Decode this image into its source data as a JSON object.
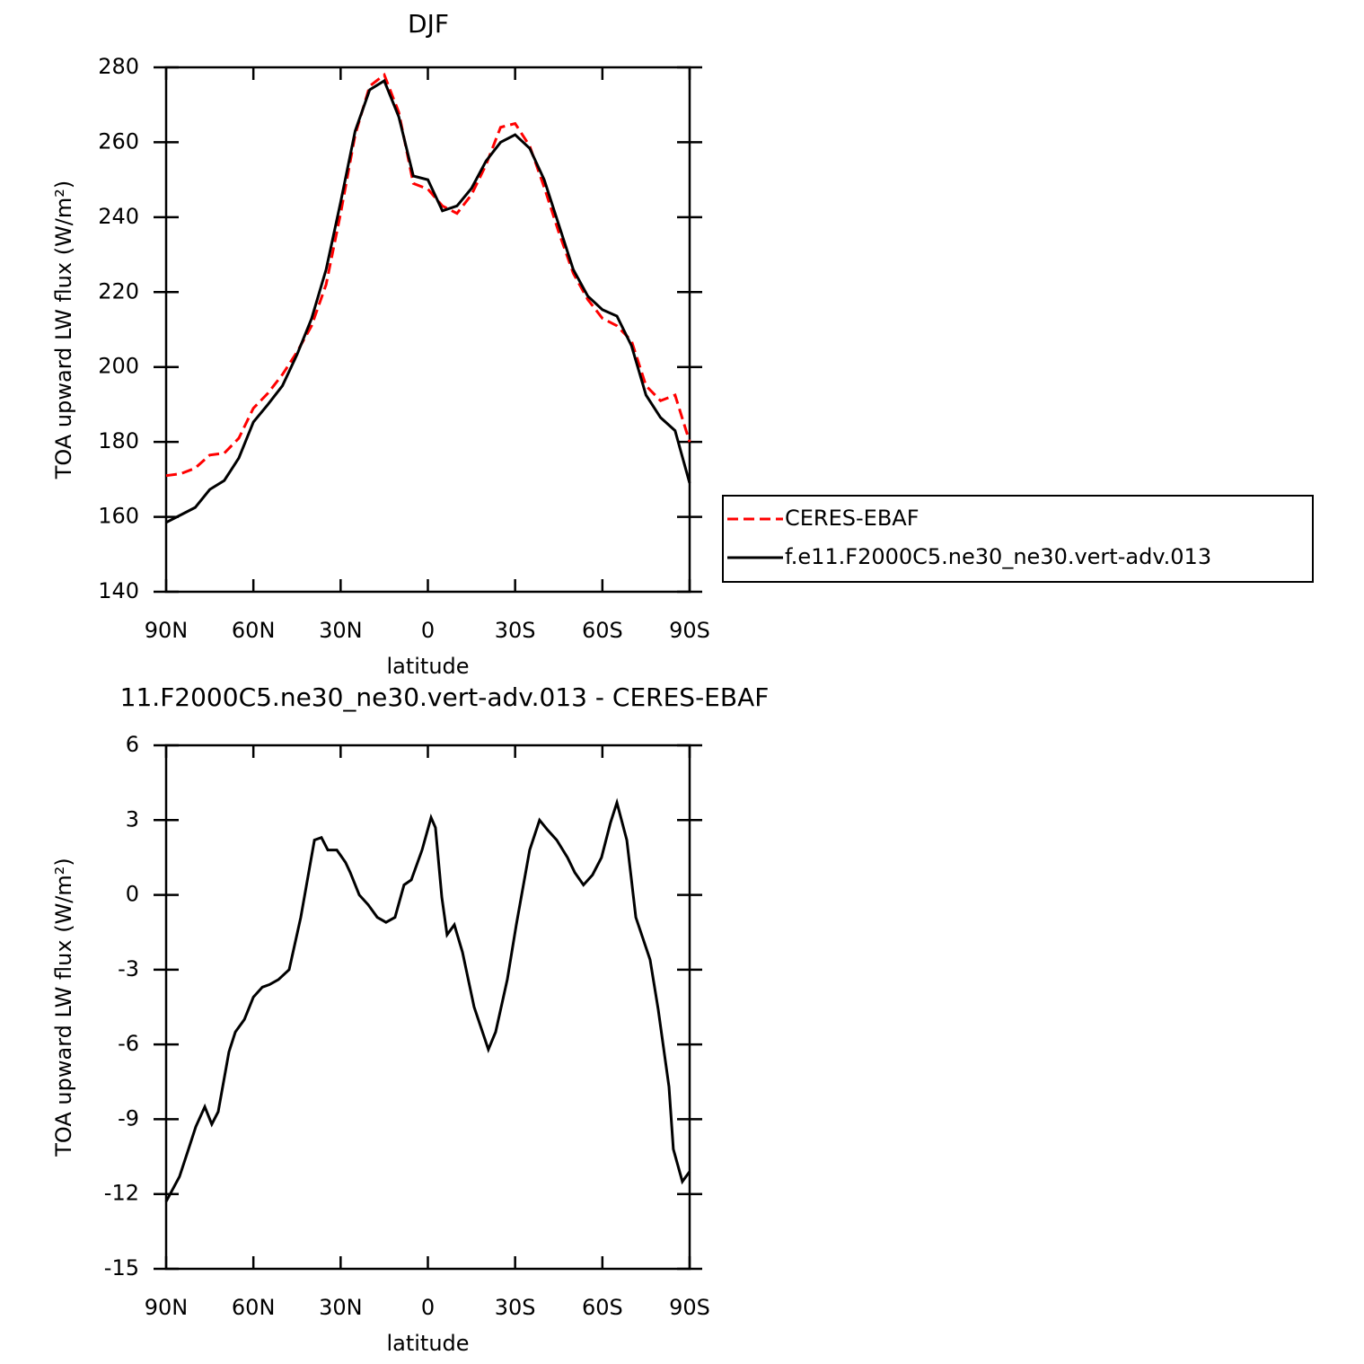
{
  "chart_data": [
    {
      "type": "line",
      "title": "DJF",
      "x_label": "latitude",
      "y_label": "TOA upward LW flux (W/m²)",
      "xlim": [
        90,
        -90
      ],
      "xticks": [
        {
          "value": 90,
          "label": "90N"
        },
        {
          "value": 60,
          "label": "60N"
        },
        {
          "value": 30,
          "label": "30N"
        },
        0,
        {
          "value": -30,
          "label": "30S"
        },
        {
          "value": -60,
          "label": "60S"
        },
        {
          "value": -90,
          "label": "90S"
        }
      ],
      "ylim": [
        140,
        280
      ],
      "yticks": [
        140,
        160,
        180,
        200,
        220,
        240,
        260,
        280
      ],
      "legend": "right",
      "x": [
        90,
        85,
        80,
        75,
        70,
        65,
        60,
        55,
        50,
        45,
        40,
        35,
        30,
        25,
        20,
        15,
        10,
        5,
        0,
        -5,
        -10,
        -15,
        -20,
        -25,
        -30,
        -35,
        -40,
        -45,
        -50,
        -55,
        -60,
        -65,
        -70,
        -75,
        -80,
        -85,
        -90
      ],
      "series": [
        {
          "name": "CERES-EBAF",
          "color": "#ff0000",
          "linestyle": "dashed",
          "values": [
            171,
            171.5,
            173,
            176.5,
            177,
            181,
            189,
            193,
            198,
            204,
            211,
            222,
            241,
            262,
            275,
            278,
            268,
            249,
            247.5,
            243,
            241,
            246,
            254,
            264,
            265,
            259,
            248,
            236,
            225,
            218,
            213,
            211,
            207,
            195,
            191,
            192.5,
            180
          ]
        },
        {
          "name": "f.e11.F2000C5.ne30_ne30.vert-adv.013",
          "color": "#000000",
          "linestyle": "solid",
          "values": [
            158.5,
            160.5,
            162.5,
            167.3,
            169.7,
            175.7,
            185.3,
            190,
            195,
            203.3,
            212.9,
            226,
            244,
            263,
            274,
            276.4,
            266.8,
            251,
            250,
            241.7,
            243,
            247.7,
            255,
            260,
            262,
            258.4,
            250,
            238,
            226,
            218.9,
            215.3,
            213.6,
            205.7,
            192.5,
            186.5,
            183,
            169
          ]
        }
      ]
    },
    {
      "type": "line",
      "title": "11.F2000C5.ne30_ne30.vert-adv.013 - CERES-EBAF",
      "x_label": "latitude",
      "y_label": "TOA upward LW flux (W/m²)",
      "xlim": [
        90,
        -90
      ],
      "xticks": [
        {
          "value": 90,
          "label": "90N"
        },
        {
          "value": 60,
          "label": "60N"
        },
        {
          "value": 30,
          "label": "30N"
        },
        0,
        {
          "value": -30,
          "label": "30S"
        },
        {
          "value": -60,
          "label": "60S"
        },
        {
          "value": -90,
          "label": "90S"
        }
      ],
      "ylim": [
        -15,
        6
      ],
      "yticks": [
        -15,
        -12,
        -9,
        -6,
        -3,
        0,
        3,
        6
      ],
      "color": "#000000",
      "x": [
        90,
        85.4,
        82.3,
        79.8,
        76.7,
        74.3,
        72.1,
        68.4,
        66.2,
        63.1,
        60,
        56.9,
        54.5,
        51.4,
        47.7,
        43.7,
        39,
        36.6,
        34.4,
        31.3,
        28.3,
        26.7,
        23.6,
        20.5,
        17.4,
        14.4,
        11.3,
        8.2,
        5.7,
        2,
        -1.1,
        -2.6,
        -4.8,
        -6.6,
        -9.1,
        -11.9,
        -15.9,
        -20.8,
        -23.3,
        -27.3,
        -30.4,
        -35,
        -38.4,
        -41.2,
        -44.3,
        -48,
        -50.5,
        -53.5,
        -56.6,
        -59.7,
        -62.8,
        -65,
        -68.4,
        -71.5,
        -76.4,
        -79.2,
        -82.9,
        -84.4,
        -87.5,
        -90
      ],
      "values": [
        -12.3,
        -11.3,
        -10.2,
        -9.3,
        -8.5,
        -9.2,
        -8.7,
        -6.3,
        -5.5,
        -5,
        -4.1,
        -3.7,
        -3.6,
        -3.4,
        -3,
        -0.9,
        2.2,
        2.3,
        1.8,
        1.8,
        1.3,
        0.9,
        0,
        -0.4,
        -0.9,
        -1.1,
        -0.9,
        0.4,
        0.6,
        1.8,
        3.1,
        2.7,
        -0.1,
        -1.6,
        -1.2,
        -2.3,
        -4.5,
        -6.2,
        -5.5,
        -3.4,
        -1.2,
        1.8,
        3,
        2.6,
        2.2,
        1.5,
        0.9,
        0.4,
        0.8,
        1.5,
        2.9,
        3.7,
        2.2,
        -0.9,
        -2.6,
        -4.6,
        -7.7,
        -10.2,
        -11.5,
        -11.1
      ]
    }
  ]
}
